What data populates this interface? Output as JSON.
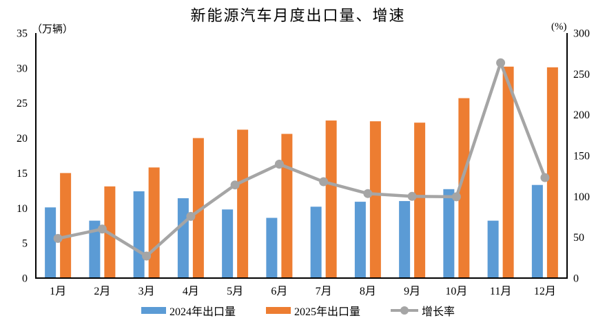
{
  "chart_data": {
    "type": "combo",
    "title": "新能源汽车月度出口量、增速",
    "categories": [
      "1月",
      "2月",
      "3月",
      "4月",
      "5月",
      "6月",
      "7月",
      "8月",
      "9月",
      "10月",
      "11月",
      "12月"
    ],
    "series": [
      {
        "name": "2024年出口量",
        "type": "bar",
        "axis": "left",
        "color": "#5B9BD5",
        "values": [
          10.1,
          8.2,
          12.4,
          11.4,
          9.8,
          8.6,
          10.2,
          10.9,
          11.0,
          12.7,
          8.2,
          13.3
        ]
      },
      {
        "name": "2025年出口量",
        "type": "bar",
        "axis": "left",
        "color": "#ED7D31",
        "values": [
          15.0,
          13.1,
          15.8,
          20.0,
          21.2,
          20.6,
          22.5,
          22.4,
          22.2,
          25.7,
          30.2,
          30.1
        ]
      },
      {
        "name": "增长率",
        "type": "line",
        "axis": "right",
        "color": "#A5A5A5",
        "values": [
          48.5,
          60,
          27,
          75.5,
          114,
          139.5,
          118,
          103.5,
          100,
          99.5,
          263.5,
          123
        ]
      }
    ],
    "axes": {
      "left": {
        "label": "（万辆）",
        "min": 0,
        "max": 35,
        "step": 5,
        "ticks": [
          0,
          5,
          10,
          15,
          20,
          25,
          30,
          35
        ]
      },
      "right": {
        "label": "(%)",
        "min": 0,
        "max": 300,
        "step": 50,
        "ticks": [
          0,
          50,
          100,
          150,
          200,
          250,
          300
        ]
      }
    },
    "legend_position": "bottom",
    "grid": false,
    "background": "#FFFFFF",
    "axis_color": "#000000",
    "text_color": "#000000"
  }
}
